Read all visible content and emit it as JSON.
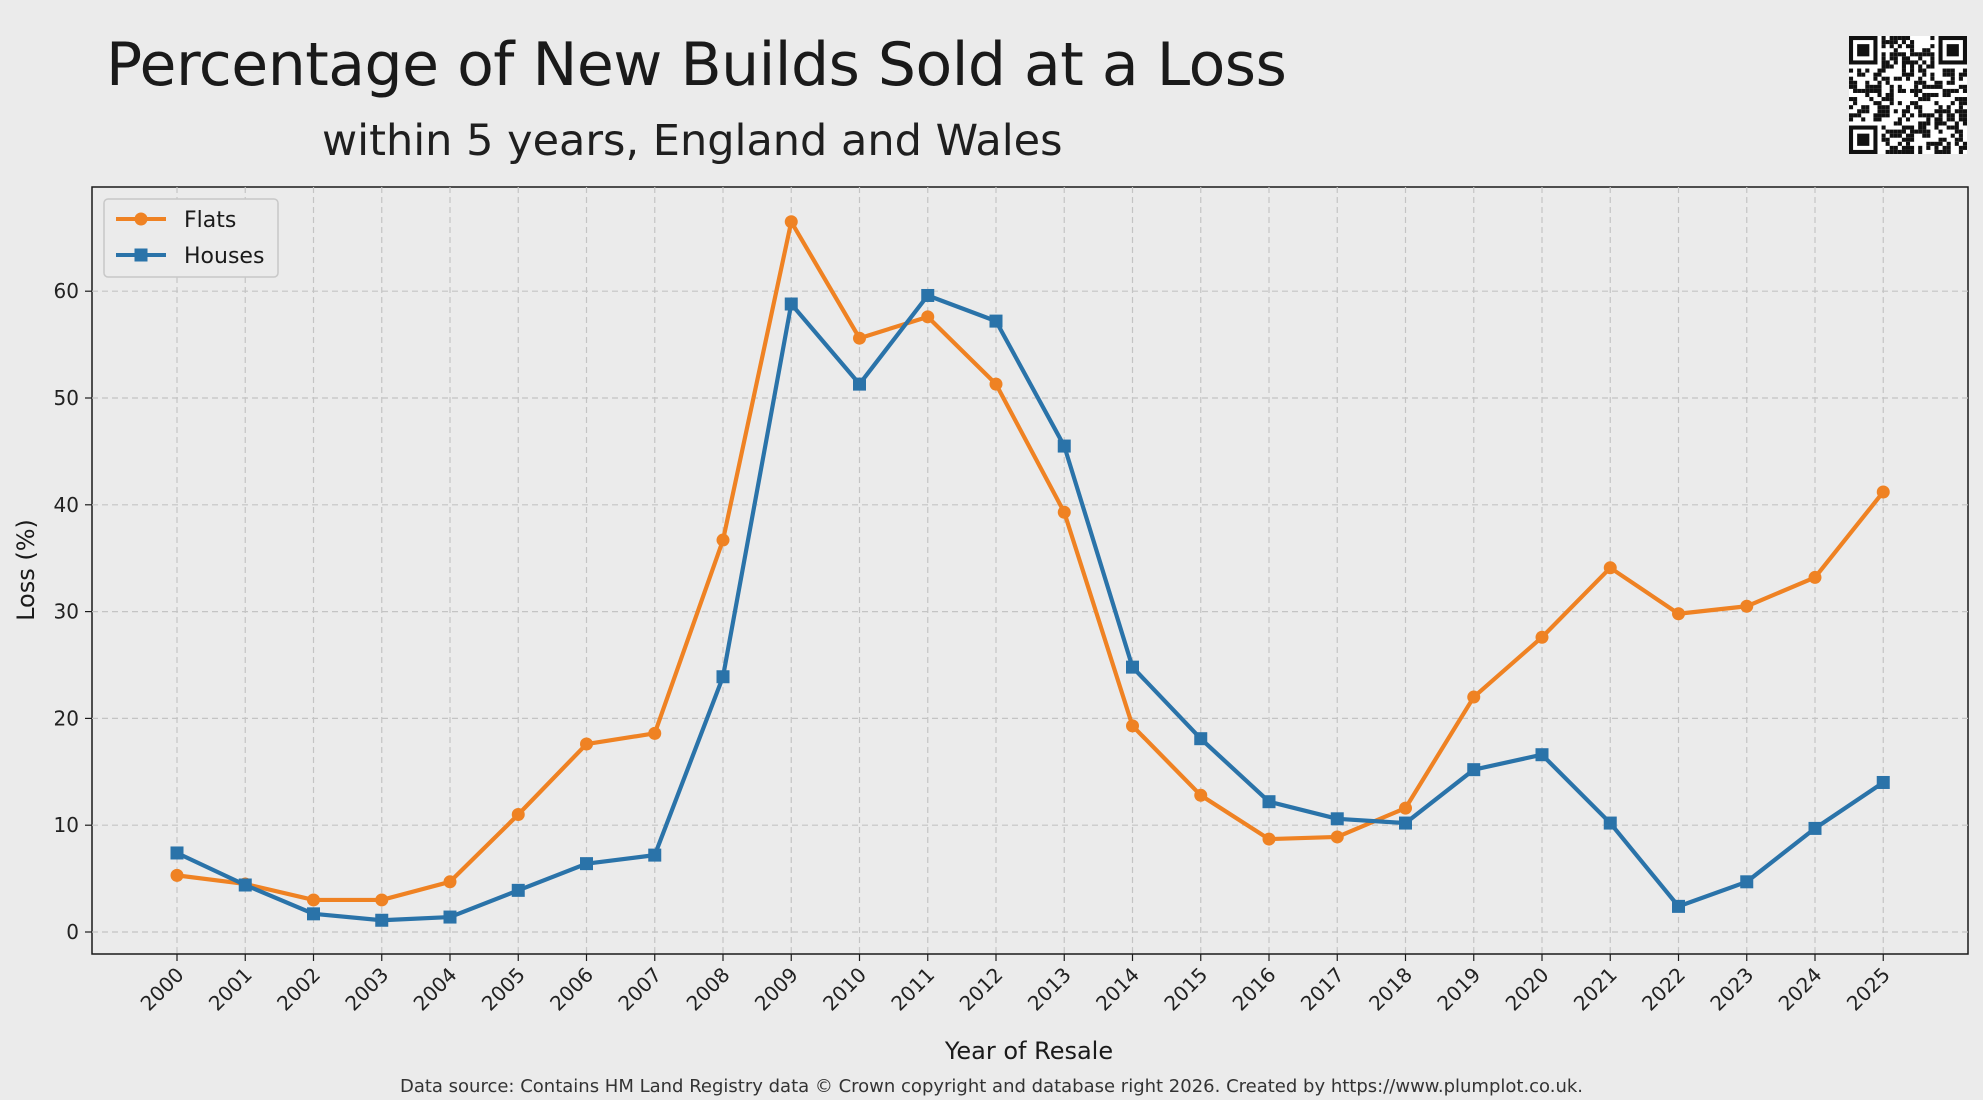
{
  "chart_data": {
    "type": "line",
    "title": "Percentage of New Builds Sold at a Loss",
    "subtitle": "within 5 years, England and Wales",
    "xlabel": "Year of Resale",
    "ylabel": "Loss (%)",
    "ylim": [
      -2,
      69
    ],
    "yticks": [
      0,
      10,
      20,
      30,
      40,
      50,
      60
    ],
    "grid": true,
    "legend_position": "top-left",
    "x": [
      "2000",
      "2001",
      "2002",
      "2003",
      "2004",
      "2005",
      "2006",
      "2007",
      "2008",
      "2009",
      "2010",
      "2011",
      "2012",
      "2013",
      "2014",
      "2015",
      "2016",
      "2017",
      "2018",
      "2019",
      "2020",
      "2021",
      "2022",
      "2023",
      "2024",
      "2025"
    ],
    "series": [
      {
        "name": "Flats",
        "color": "#ef8223",
        "marker": "circle",
        "values": [
          5.3,
          4.5,
          3.0,
          3.0,
          4.7,
          11.0,
          17.6,
          18.6,
          36.7,
          66.5,
          55.6,
          57.6,
          51.3,
          39.3,
          19.3,
          12.8,
          8.7,
          8.9,
          11.6,
          22.0,
          27.6,
          34.1,
          29.8,
          30.5,
          33.2,
          41.2
        ]
      },
      {
        "name": "Houses",
        "color": "#2a73a9",
        "marker": "square",
        "values": [
          7.4,
          4.4,
          1.7,
          1.1,
          1.4,
          3.9,
          6.4,
          7.2,
          23.9,
          58.8,
          51.3,
          59.6,
          57.2,
          45.5,
          24.8,
          18.1,
          12.2,
          10.6,
          10.2,
          15.2,
          16.6,
          10.2,
          2.4,
          4.7,
          9.7,
          14.0
        ]
      }
    ]
  },
  "footer": {
    "source": "Data source: Contains HM Land Registry data © Crown copyright and database right 2026. Created by https://www.plumplot.co.uk."
  },
  "qr_icon": "qr-code-icon"
}
